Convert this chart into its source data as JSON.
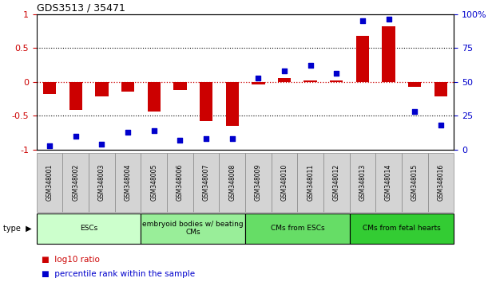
{
  "title": "GDS3513 / 35471",
  "samples": [
    "GSM348001",
    "GSM348002",
    "GSM348003",
    "GSM348004",
    "GSM348005",
    "GSM348006",
    "GSM348007",
    "GSM348008",
    "GSM348009",
    "GSM348010",
    "GSM348011",
    "GSM348012",
    "GSM348013",
    "GSM348014",
    "GSM348015",
    "GSM348016"
  ],
  "log10_ratio": [
    -0.18,
    -0.42,
    -0.22,
    -0.15,
    -0.44,
    -0.12,
    -0.58,
    -0.65,
    -0.04,
    0.05,
    0.02,
    0.02,
    0.68,
    0.82,
    -0.08,
    -0.22
  ],
  "percentile_rank": [
    3,
    10,
    4,
    13,
    14,
    7,
    8,
    8,
    53,
    58,
    62,
    56,
    95,
    96,
    28,
    18
  ],
  "cell_types": [
    {
      "label": "ESCs",
      "start": 0,
      "end": 3,
      "color": "#ccffcc"
    },
    {
      "label": "embryoid bodies w/ beating\nCMs",
      "start": 4,
      "end": 7,
      "color": "#99ee99"
    },
    {
      "label": "CMs from ESCs",
      "start": 8,
      "end": 11,
      "color": "#66dd66"
    },
    {
      "label": "CMs from fetal hearts",
      "start": 12,
      "end": 15,
      "color": "#33cc33"
    }
  ],
  "ylim_left": [
    -1.0,
    1.0
  ],
  "ylim_right": [
    0,
    100
  ],
  "yticks_left": [
    -1.0,
    -0.5,
    0.0,
    0.5,
    1.0
  ],
  "ytick_labels_left": [
    "-1",
    "-0.5",
    "0",
    "0.5",
    "1"
  ],
  "yticks_right": [
    0,
    25,
    50,
    75,
    100
  ],
  "ytick_labels_right": [
    "0",
    "25",
    "50",
    "75",
    "100%"
  ],
  "bar_color": "#cc0000",
  "dot_color": "#0000cc",
  "background_color": "#ffffff",
  "zero_line_color": "#cc0000",
  "gsm_box_color": "#d4d4d4",
  "gsm_box_edge": "#888888"
}
